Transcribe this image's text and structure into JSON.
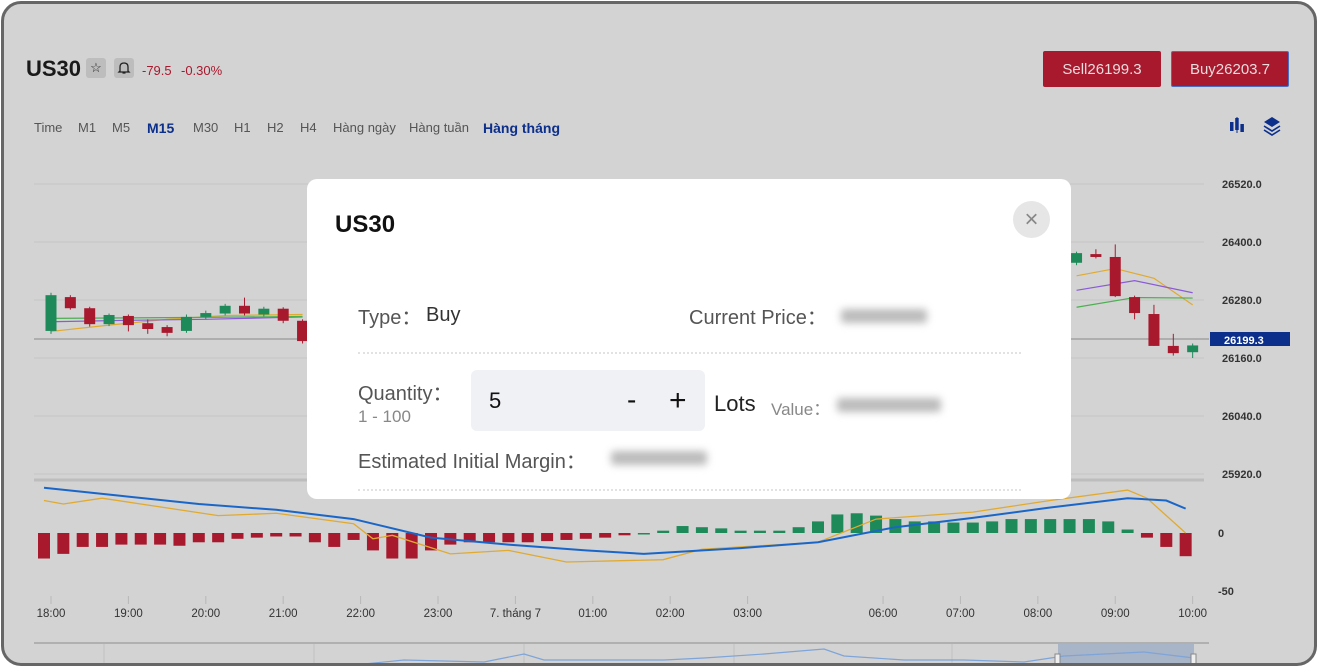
{
  "header": {
    "symbol": "US30",
    "change": "-79.5",
    "change_pct": "-0.30%",
    "sell_label": "Sell26199.3",
    "buy_label": "Buy26203.7",
    "star_icon": "☆",
    "bell_icon": "🔔"
  },
  "timeframes": [
    {
      "label": "Time",
      "active": false
    },
    {
      "label": "M1",
      "active": false
    },
    {
      "label": "M5",
      "active": false
    },
    {
      "label": "M15",
      "active": true
    },
    {
      "label": "M30",
      "active": false
    },
    {
      "label": "H1",
      "active": false
    },
    {
      "label": "H2",
      "active": false
    },
    {
      "label": "H4",
      "active": false
    },
    {
      "label": "Hàng ngày",
      "active": false
    },
    {
      "label": "Hàng tuần",
      "active": false
    },
    {
      "label": "Hàng tháng",
      "active": true
    }
  ],
  "colors": {
    "up": "#1e8a5a",
    "down": "#a8192e",
    "accent": "#0c2f8c",
    "signal": "#1a66c8",
    "macd": "#e0aa30"
  },
  "chart_data": {
    "type": "candlestick",
    "price_ticks": [
      "26520.0",
      "26400.0",
      "26280.0",
      "26160.0",
      "26040.0",
      "25920.0"
    ],
    "price_values": [
      26520,
      26400,
      26280,
      26160,
      26040,
      25920
    ],
    "current_price": "26199.3",
    "current_price_value": 26199.3,
    "macd_ticks": [
      "0",
      "-50"
    ],
    "macd_values": [
      0,
      -50
    ],
    "time_labels": [
      {
        "label": "18:00",
        "i": 0
      },
      {
        "label": "19:00",
        "i": 4
      },
      {
        "label": "20:00",
        "i": 8
      },
      {
        "label": "21:00",
        "i": 12
      },
      {
        "label": "22:00",
        "i": 16
      },
      {
        "label": "23:00",
        "i": 20
      },
      {
        "label": "7. tháng 7",
        "i": 24
      },
      {
        "label": "01:00",
        "i": 28
      },
      {
        "label": "02:00",
        "i": 32
      },
      {
        "label": "03:00",
        "i": 36
      },
      {
        "label": "06:00",
        "i": 43
      },
      {
        "label": "07:00",
        "i": 47
      },
      {
        "label": "08:00",
        "i": 51
      },
      {
        "label": "09:00",
        "i": 55
      },
      {
        "label": "10:00",
        "i": 59
      }
    ],
    "candles": [
      {
        "i": 0,
        "o": 26216,
        "h": 26295,
        "l": 26210,
        "c": 26290
      },
      {
        "i": 1,
        "o": 26286,
        "h": 26290,
        "l": 26260,
        "c": 26263
      },
      {
        "i": 2,
        "o": 26263,
        "h": 26266,
        "l": 26225,
        "c": 26230
      },
      {
        "i": 3,
        "o": 26230,
        "h": 26252,
        "l": 26226,
        "c": 26249
      },
      {
        "i": 4,
        "o": 26247,
        "h": 26250,
        "l": 26215,
        "c": 26228
      },
      {
        "i": 5,
        "o": 26232,
        "h": 26240,
        "l": 26210,
        "c": 26220
      },
      {
        "i": 6,
        "o": 26224,
        "h": 26228,
        "l": 26205,
        "c": 26212
      },
      {
        "i": 7,
        "o": 26216,
        "h": 26250,
        "l": 26212,
        "c": 26245
      },
      {
        "i": 8,
        "o": 26245,
        "h": 26258,
        "l": 26240,
        "c": 26253
      },
      {
        "i": 9,
        "o": 26252,
        "h": 26272,
        "l": 26248,
        "c": 26268
      },
      {
        "i": 10,
        "o": 26268,
        "h": 26285,
        "l": 26248,
        "c": 26252
      },
      {
        "i": 11,
        "o": 26250,
        "h": 26266,
        "l": 26246,
        "c": 26262
      },
      {
        "i": 12,
        "o": 26262,
        "h": 26265,
        "l": 26232,
        "c": 26237
      },
      {
        "i": 13,
        "o": 26237,
        "h": 26240,
        "l": 26190,
        "c": 26195
      },
      {
        "i": 53,
        "o": 26357,
        "h": 26380,
        "l": 26352,
        "c": 26377
      },
      {
        "i": 54,
        "o": 26375,
        "h": 26385,
        "l": 26366,
        "c": 26369
      },
      {
        "i": 55,
        "o": 26369,
        "h": 26395,
        "l": 26286,
        "c": 26288
      },
      {
        "i": 56,
        "o": 26286,
        "h": 26289,
        "l": 26240,
        "c": 26253
      },
      {
        "i": 57,
        "o": 26251,
        "h": 26270,
        "l": 26185,
        "c": 26185
      },
      {
        "i": 58,
        "o": 26185,
        "h": 26210,
        "l": 26165,
        "c": 26170
      },
      {
        "i": 59,
        "o": 26172,
        "h": 26190,
        "l": 26160,
        "c": 26186
      }
    ],
    "histogram": [
      -22,
      -18,
      -12,
      -12,
      -10,
      -10,
      -10,
      -11,
      -8,
      -8,
      -5,
      -4,
      -3,
      -3,
      -8,
      -12,
      -6,
      -15,
      -22,
      -22,
      -15,
      -10,
      -8,
      -8,
      -8,
      -8,
      -7,
      -6,
      -5,
      -4,
      -2,
      0,
      2,
      6,
      5,
      4,
      2,
      2,
      2,
      5,
      10,
      16,
      17,
      15,
      12,
      10,
      10,
      9,
      9,
      10,
      12,
      12,
      12,
      12,
      12,
      10,
      3,
      -4,
      -12,
      -20
    ],
    "signal_line": [
      [
        0,
        39
      ],
      [
        4,
        32
      ],
      [
        8,
        25
      ],
      [
        12,
        20
      ],
      [
        16,
        12
      ],
      [
        20,
        -4
      ],
      [
        24,
        -10
      ],
      [
        28,
        -15
      ],
      [
        31,
        -18
      ],
      [
        36,
        -13
      ],
      [
        40,
        -8
      ],
      [
        44,
        5
      ],
      [
        48,
        13
      ],
      [
        52,
        22
      ],
      [
        56,
        30
      ],
      [
        58,
        28
      ],
      [
        59,
        21
      ]
    ],
    "macd_line": [
      [
        0,
        28
      ],
      [
        1,
        25
      ],
      [
        3,
        30
      ],
      [
        5,
        25
      ],
      [
        9,
        15
      ],
      [
        12,
        17
      ],
      [
        16,
        8
      ],
      [
        17,
        -5
      ],
      [
        18,
        -2
      ],
      [
        21,
        -18
      ],
      [
        24,
        -15
      ],
      [
        27,
        -25
      ],
      [
        32,
        -23
      ],
      [
        34,
        -14
      ],
      [
        40,
        -8
      ],
      [
        43,
        12
      ],
      [
        48,
        18
      ],
      [
        52,
        28
      ],
      [
        56,
        37
      ],
      [
        57,
        30
      ],
      [
        59,
        0
      ]
    ],
    "ma_lines": [
      {
        "color": "#e0aa30",
        "points": [
          [
            0,
            26215
          ],
          [
            3,
            26228
          ],
          [
            6,
            26240
          ],
          [
            9,
            26248
          ],
          [
            13,
            26250
          ]
        ]
      },
      {
        "color": "#8a5ad8",
        "points": [
          [
            0,
            26235
          ],
          [
            4,
            26238
          ],
          [
            8,
            26240
          ],
          [
            13,
            26245
          ]
        ]
      },
      {
        "color": "#4caf50",
        "points": [
          [
            0,
            26242
          ],
          [
            4,
            26243
          ],
          [
            8,
            26244
          ],
          [
            13,
            26246
          ]
        ]
      },
      {
        "color": "#e0aa30",
        "points": [
          [
            53,
            26330
          ],
          [
            55,
            26345
          ],
          [
            57,
            26325
          ],
          [
            59,
            26270
          ]
        ]
      },
      {
        "color": "#8a5ad8",
        "points": [
          [
            53,
            26300
          ],
          [
            56,
            26320
          ],
          [
            59,
            26295
          ]
        ]
      },
      {
        "color": "#4caf50",
        "points": [
          [
            53,
            26265
          ],
          [
            56,
            26285
          ],
          [
            59,
            26284
          ]
        ]
      }
    ]
  },
  "modal": {
    "title": "US30",
    "close_icon": "×",
    "type_label": "Type：",
    "type_value": "Buy",
    "current_price_label": "Current Price：",
    "quantity_label": "Quantity：",
    "quantity_range": "1 - 100",
    "quantity_value": "5",
    "minus": "-",
    "plus": "+",
    "lots": "Lots",
    "value_label": "Value：",
    "margin_label": "Estimated Initial Margin："
  }
}
